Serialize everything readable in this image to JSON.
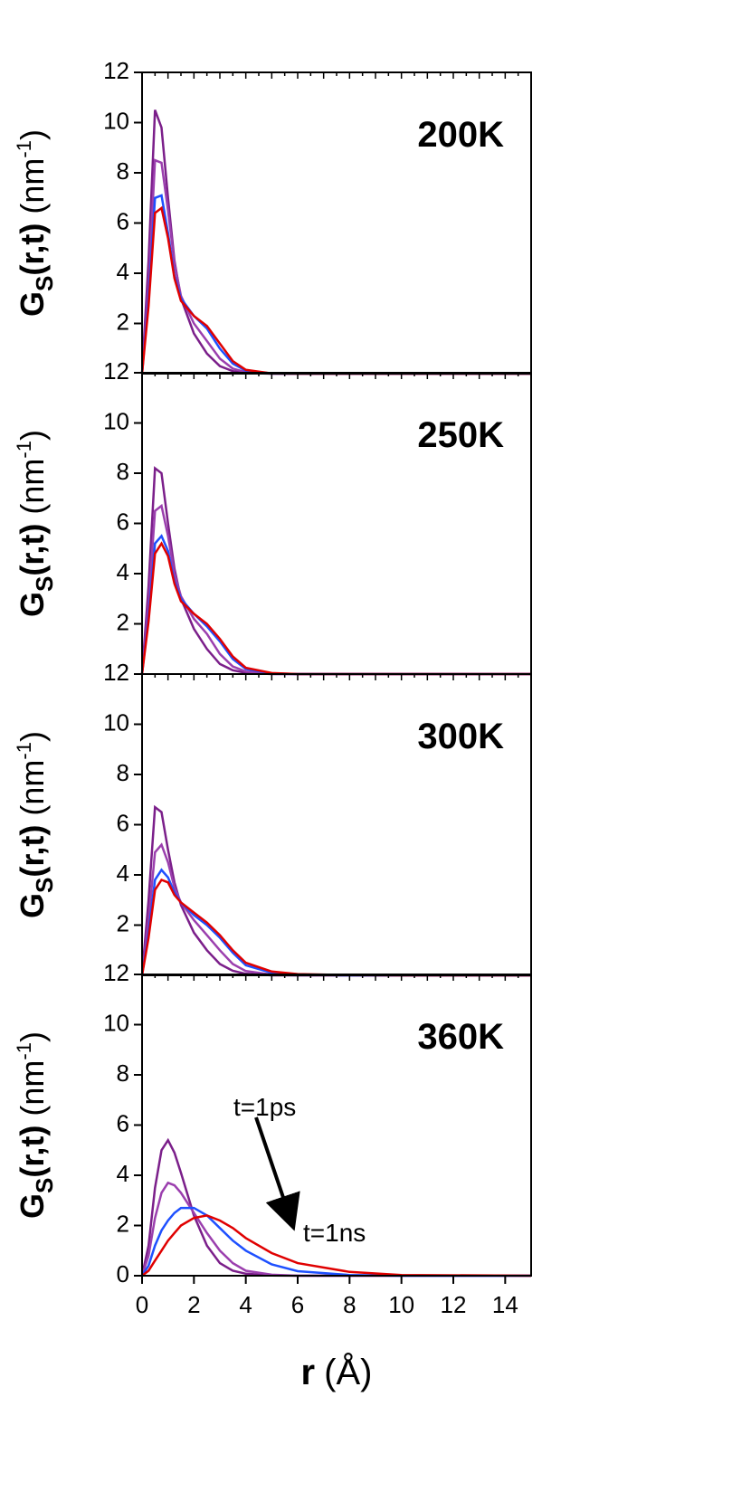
{
  "chart_data": [
    {
      "type": "line",
      "label": "200K",
      "ylabel": {
        "main": "G",
        "sub": "S",
        "rest": "(r,t)",
        "unit": "(nm",
        "sup": "-1",
        "close": ")"
      },
      "x": [
        0,
        0.25,
        0.5,
        0.75,
        1,
        1.25,
        1.5,
        2,
        2.5,
        3,
        3.5,
        4,
        5,
        6,
        8,
        10,
        15
      ],
      "series": [
        {
          "color": "#7b1f8a",
          "values": [
            0,
            4.5,
            10.5,
            9.8,
            7.0,
            4.5,
            3.0,
            1.6,
            0.8,
            0.3,
            0.1,
            0.03,
            0,
            0,
            0,
            0,
            0
          ]
        },
        {
          "color": "#9b3fae",
          "values": [
            0,
            3.5,
            8.5,
            8.4,
            6.5,
            4.4,
            3.1,
            2.0,
            1.3,
            0.6,
            0.2,
            0.06,
            0,
            0,
            0,
            0,
            0
          ]
        },
        {
          "color": "#1e50ff",
          "values": [
            0,
            3,
            7.0,
            7.1,
            5.6,
            3.9,
            3.0,
            2.3,
            1.8,
            1.0,
            0.4,
            0.12,
            0.01,
            0,
            0,
            0,
            0
          ]
        },
        {
          "color": "#e00000",
          "values": [
            0,
            2.7,
            6.4,
            6.6,
            5.4,
            3.8,
            2.9,
            2.3,
            1.9,
            1.2,
            0.5,
            0.15,
            0.01,
            0,
            0,
            0,
            0
          ]
        }
      ],
      "xlim": [
        0,
        15
      ],
      "ylim": [
        0,
        12
      ],
      "yticks": [
        2,
        4,
        6,
        8,
        10,
        12
      ]
    },
    {
      "type": "line",
      "label": "250K",
      "ylabel": {
        "main": "G",
        "sub": "S",
        "rest": "(r,t)",
        "unit": "(nm",
        "sup": "-1",
        "close": ")"
      },
      "x": [
        0,
        0.25,
        0.5,
        0.75,
        1,
        1.25,
        1.5,
        2,
        2.5,
        3,
        3.5,
        4,
        5,
        6,
        8,
        10,
        15
      ],
      "series": [
        {
          "color": "#7b1f8a",
          "values": [
            0,
            3.5,
            8.2,
            8.0,
            6.0,
            4.2,
            3.0,
            1.8,
            1.0,
            0.4,
            0.15,
            0.05,
            0,
            0,
            0,
            0,
            0
          ]
        },
        {
          "color": "#9b3fae",
          "values": [
            0,
            2.8,
            6.5,
            6.7,
            5.5,
            4.0,
            3.1,
            2.2,
            1.6,
            0.8,
            0.3,
            0.1,
            0.01,
            0,
            0,
            0,
            0
          ]
        },
        {
          "color": "#1e50ff",
          "values": [
            0,
            2.3,
            5.2,
            5.5,
            4.9,
            3.7,
            3.0,
            2.4,
            1.9,
            1.3,
            0.6,
            0.2,
            0.03,
            0,
            0,
            0,
            0
          ]
        },
        {
          "color": "#e00000",
          "values": [
            0,
            2.1,
            4.8,
            5.2,
            4.7,
            3.6,
            2.9,
            2.4,
            2.0,
            1.4,
            0.7,
            0.25,
            0.04,
            0,
            0,
            0,
            0
          ]
        }
      ],
      "xlim": [
        0,
        15
      ],
      "ylim": [
        0,
        12
      ],
      "yticks": [
        2,
        4,
        6,
        8,
        10,
        12
      ]
    },
    {
      "type": "line",
      "label": "300K",
      "ylabel": {
        "main": "G",
        "sub": "S",
        "rest": "(r,t)",
        "unit": "(nm",
        "sup": "-1",
        "close": ")"
      },
      "x": [
        0,
        0.25,
        0.5,
        0.75,
        1,
        1.25,
        1.5,
        2,
        2.5,
        3,
        3.5,
        4,
        5,
        6,
        8,
        10,
        15
      ],
      "series": [
        {
          "color": "#7b1f8a",
          "values": [
            0,
            3,
            6.7,
            6.5,
            5.0,
            3.7,
            2.8,
            1.7,
            1.0,
            0.45,
            0.18,
            0.06,
            0,
            0,
            0,
            0,
            0
          ]
        },
        {
          "color": "#9b3fae",
          "values": [
            0,
            2.2,
            4.9,
            5.2,
            4.5,
            3.5,
            2.9,
            2.2,
            1.6,
            1.0,
            0.45,
            0.17,
            0.03,
            0,
            0,
            0,
            0
          ]
        },
        {
          "color": "#1e50ff",
          "values": [
            0,
            1.7,
            3.8,
            4.2,
            3.9,
            3.3,
            2.9,
            2.4,
            2.0,
            1.5,
            0.9,
            0.4,
            0.1,
            0.03,
            0,
            0,
            0
          ]
        },
        {
          "color": "#e00000",
          "values": [
            0,
            1.5,
            3.4,
            3.8,
            3.7,
            3.2,
            2.9,
            2.5,
            2.1,
            1.6,
            1.0,
            0.5,
            0.15,
            0.05,
            0.01,
            0,
            0
          ]
        }
      ],
      "xlim": [
        0,
        15
      ],
      "ylim": [
        0,
        12
      ],
      "yticks": [
        2,
        4,
        6,
        8,
        10,
        12
      ]
    },
    {
      "type": "line",
      "label": "360K",
      "ylabel": {
        "main": "G",
        "sub": "S",
        "rest": "(r,t)",
        "unit": "(nm",
        "sup": "-1",
        "close": ")"
      },
      "xlabel": {
        "main": "r",
        "unit": "(Å)"
      },
      "annotations": [
        "t=1ps",
        "t=1ns"
      ],
      "x": [
        0,
        0.25,
        0.5,
        0.75,
        1,
        1.25,
        1.5,
        2,
        2.5,
        3,
        3.5,
        4,
        5,
        6,
        8,
        10,
        15
      ],
      "series": [
        {
          "color": "#7b1f8a",
          "values": [
            0,
            1.2,
            3.5,
            5.0,
            5.4,
            4.9,
            4.1,
            2.4,
            1.2,
            0.5,
            0.2,
            0.08,
            0.01,
            0,
            0,
            0,
            0
          ]
        },
        {
          "color": "#9b3fae",
          "values": [
            0,
            0.8,
            2.3,
            3.3,
            3.7,
            3.6,
            3.3,
            2.5,
            1.7,
            1.0,
            0.5,
            0.2,
            0.04,
            0,
            0,
            0,
            0
          ]
        },
        {
          "color": "#1e50ff",
          "values": [
            0,
            0.4,
            1.2,
            1.8,
            2.2,
            2.5,
            2.7,
            2.7,
            2.4,
            1.9,
            1.4,
            1.0,
            0.45,
            0.18,
            0.03,
            0,
            0
          ]
        },
        {
          "color": "#e00000",
          "values": [
            0,
            0.2,
            0.6,
            1.0,
            1.4,
            1.7,
            2.0,
            2.3,
            2.4,
            2.2,
            1.9,
            1.5,
            0.9,
            0.5,
            0.15,
            0.03,
            0
          ]
        }
      ],
      "xlim": [
        0,
        15
      ],
      "ylim": [
        0,
        12
      ],
      "yticks": [
        0,
        2,
        4,
        6,
        8,
        10,
        12
      ],
      "xticks": [
        0,
        2,
        4,
        6,
        8,
        10,
        12,
        14
      ]
    }
  ]
}
